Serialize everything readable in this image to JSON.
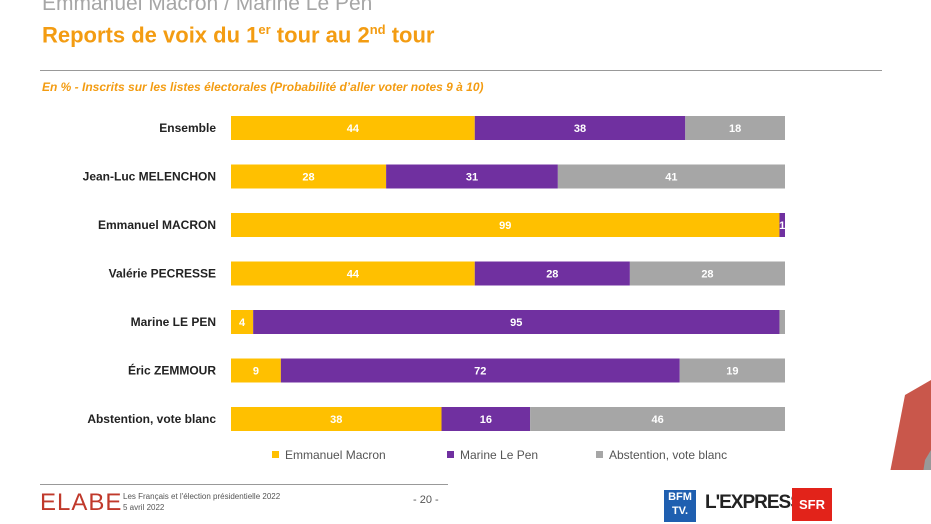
{
  "header": {
    "supertitle": "Emmanuel Macron / Marine Le Pen",
    "title_a": "Reports de voix du 1",
    "title_sup1": "er",
    "title_b": " tour au 2",
    "title_sup2": "nd",
    "title_c": " tour",
    "subtitle": "En % - Inscrits sur les listes électorales (Probabilité d’aller voter notes 9 à 10)"
  },
  "chart_data": {
    "type": "bar",
    "stacked": true,
    "orientation": "horizontal",
    "categories": [
      "Ensemble",
      "Jean-Luc MELENCHON",
      "Emmanuel MACRON",
      "Valérie PECRESSE",
      "Marine LE PEN",
      "Éric ZEMMOUR",
      "Abstention, vote blanc"
    ],
    "series": [
      {
        "name": "Emmanuel Macron",
        "color": "#ffc000",
        "values": [
          44,
          28,
          99,
          44,
          4,
          9,
          38
        ]
      },
      {
        "name": "Marine Le Pen",
        "color": "#7030a0",
        "values": [
          38,
          31,
          1,
          28,
          95,
          72,
          16
        ]
      },
      {
        "name": "Abstention, vote blanc",
        "color": "#a6a6a6",
        "values": [
          18,
          41,
          0,
          28,
          1,
          19,
          46
        ]
      }
    ],
    "labels": [
      [
        "44",
        "38",
        "18"
      ],
      [
        "28",
        "31",
        "41"
      ],
      [
        "99",
        "1",
        ""
      ],
      [
        "44",
        "28",
        "28"
      ],
      [
        "4",
        "95",
        ""
      ],
      [
        "9",
        "72",
        "19"
      ],
      [
        "38",
        "16",
        "46"
      ]
    ],
    "legend": "bottom",
    "xlim": [
      0,
      100
    ]
  },
  "footer": {
    "logo": "ELABE",
    "line1": "Les Français et l'élection présidentielle 2022",
    "line2": "5 avril 2022",
    "page": "- 20 -",
    "partners": [
      "BFM TV.",
      "L'EXPRESS",
      "SFR"
    ]
  }
}
